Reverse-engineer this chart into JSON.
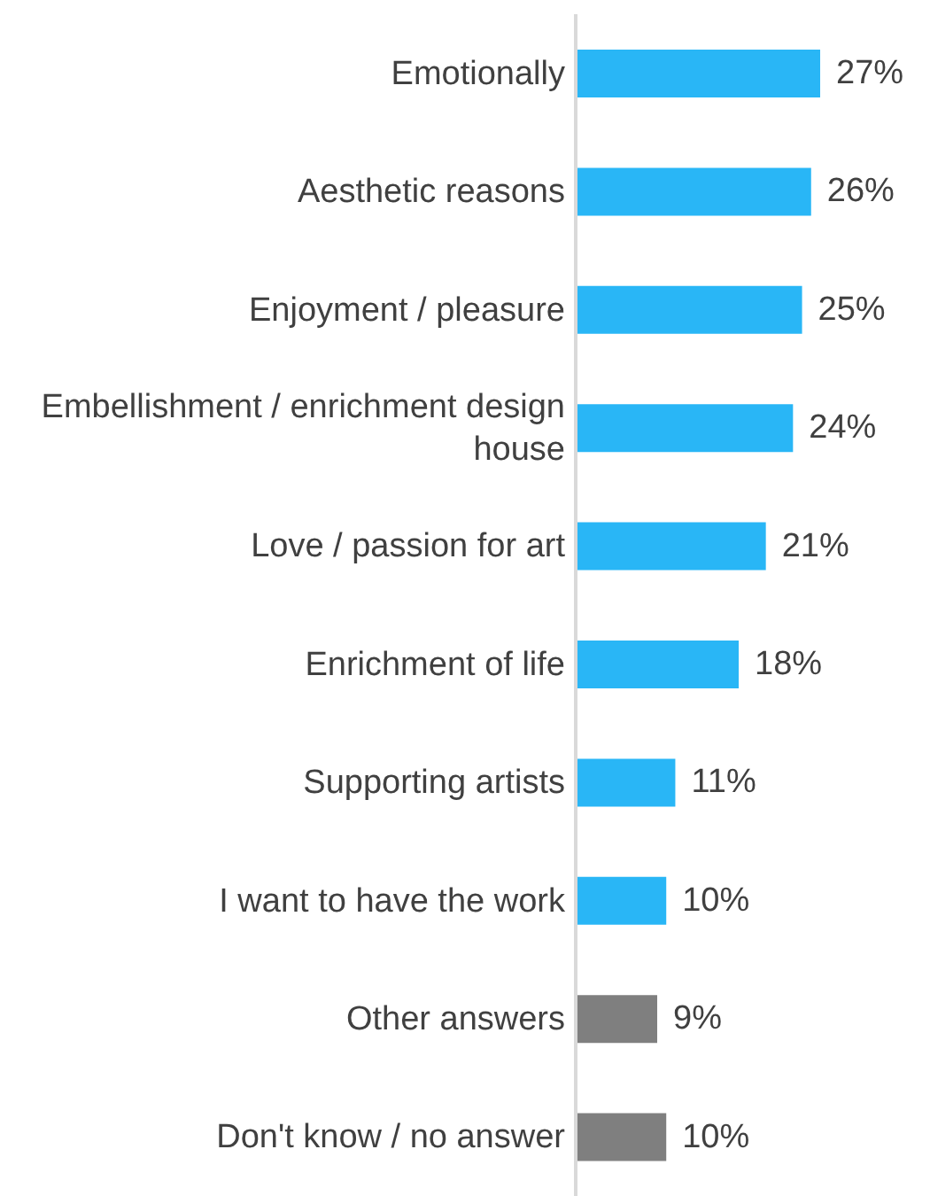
{
  "chart_data": {
    "type": "bar",
    "orientation": "horizontal",
    "categories": [
      "Emotionally",
      "Aesthetic reasons",
      "Enjoyment / pleasure",
      "Embellishment / enrichment design house",
      "Love / passion for art",
      "Enrichment of life",
      "Supporting artists",
      "I want to have the work",
      "Other answers",
      "Don't know / no answer"
    ],
    "values": [
      27,
      26,
      25,
      24,
      21,
      18,
      11,
      10,
      9,
      10
    ],
    "colors": [
      "#29b6f6",
      "#29b6f6",
      "#29b6f6",
      "#29b6f6",
      "#29b6f6",
      "#29b6f6",
      "#29b6f6",
      "#29b6f6",
      "#7f7f7f",
      "#7f7f7f"
    ],
    "value_labels": [
      "27%",
      "26%",
      "25%",
      "24%",
      "21%",
      "18%",
      "11%",
      "10%",
      "9%",
      "10%"
    ],
    "grid": false,
    "legend": false
  }
}
